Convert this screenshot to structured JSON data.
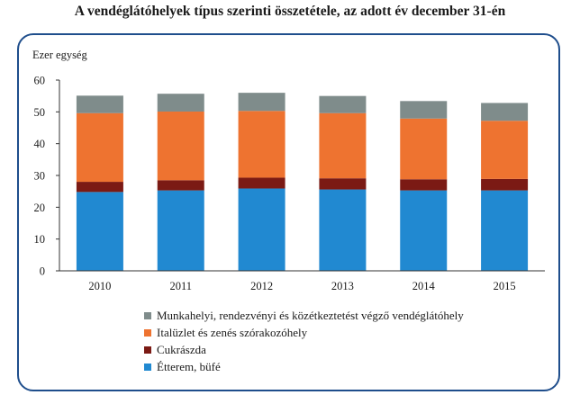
{
  "chart_data": {
    "type": "bar",
    "stacked": true,
    "title": "A vendéglátóhelyek típus szerinti összetétele, az adott év december 31-én",
    "ylabel": "Ezer egység",
    "ylim": [
      0,
      60
    ],
    "yticks": [
      "0",
      "10",
      "20",
      "30",
      "40",
      "50",
      "60"
    ],
    "categories": [
      "2010",
      "2011",
      "2012",
      "2013",
      "2014",
      "2015"
    ],
    "series": [
      {
        "name": "Étterem, büfé",
        "color": "#2189d1",
        "values": [
          24.8,
          25.3,
          25.9,
          25.6,
          25.3,
          25.3
        ]
      },
      {
        "name": "Cukrászda",
        "color": "#7b1a14",
        "values": [
          3.2,
          3.2,
          3.4,
          3.5,
          3.5,
          3.6
        ]
      },
      {
        "name": "Italüzlet és zenés szórakozóhely",
        "color": "#ee7330",
        "values": [
          21.6,
          21.6,
          21.0,
          20.5,
          19.1,
          18.3
        ]
      },
      {
        "name": "Munkahelyi, rendezvényi és közétkeztetést végző vendéglátóhely",
        "color": "#7f8c8b",
        "values": [
          5.5,
          5.6,
          5.7,
          5.4,
          5.5,
          5.6
        ]
      }
    ],
    "legend_position": "bottom",
    "legend_order": [
      "Munkahelyi, rendezvényi és közétkeztetést végző vendéglátóhely",
      "Italüzlet és zenés szórakozóhely",
      "Cukrászda",
      "Étterem, büfé"
    ]
  }
}
